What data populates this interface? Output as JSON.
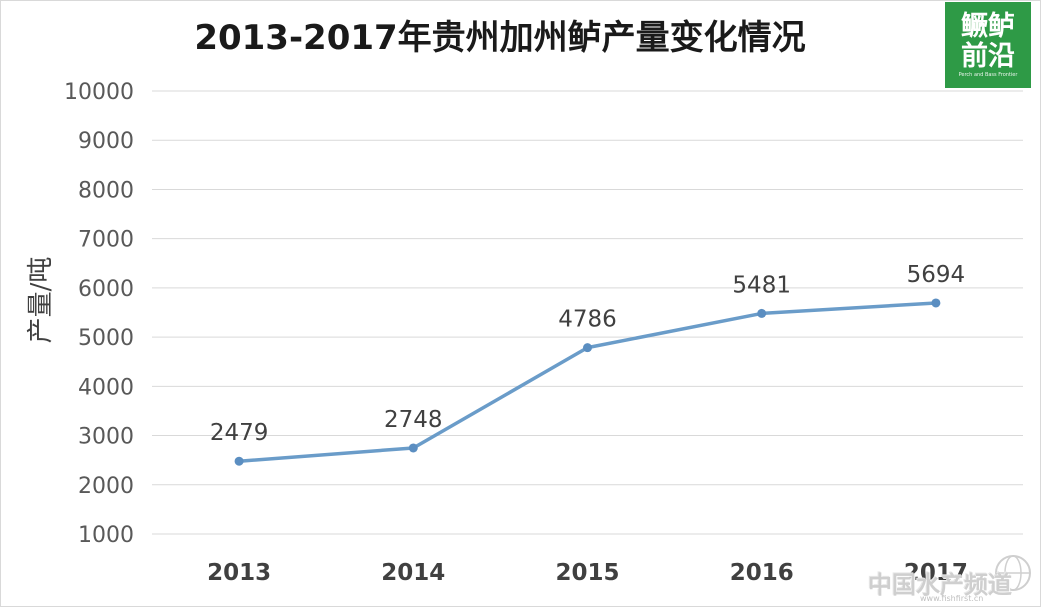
{
  "chart_data": {
    "type": "line",
    "title": "2013-2017年贵州加州鲈产量变化情况",
    "xlabel": "",
    "ylabel": "产量/吨",
    "categories": [
      "2013",
      "2014",
      "2015",
      "2016",
      "2017"
    ],
    "series": [
      {
        "values": [
          2479,
          2748,
          4786,
          5481,
          5694
        ]
      }
    ],
    "ylim": [
      1000,
      10000
    ],
    "yticks": [
      "1000",
      "2000",
      "3000",
      "4000",
      "5000",
      "6000",
      "7000",
      "8000",
      "9000",
      "10000"
    ],
    "grid": true,
    "data_labels": true,
    "line_color": "#6a9cc9",
    "marker_color": "#5b8ec1"
  },
  "logo": {
    "line1": "鳜鲈",
    "line2": "前沿",
    "tagline": "Perch and Bass Frontier",
    "color": "#2e9a46"
  },
  "watermark": {
    "text": "中国水产频道",
    "url": "www.fishfirst.cn"
  }
}
